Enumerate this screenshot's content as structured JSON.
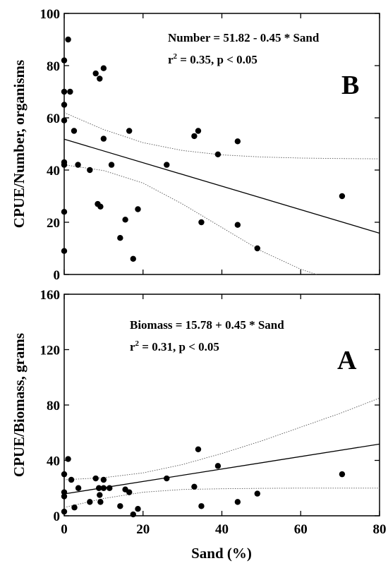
{
  "chart_data": [
    {
      "type": "scatter",
      "panel_label": "B",
      "ylabel": "CPUE/Number, organisms",
      "xlabel": "",
      "xlim": [
        0,
        80
      ],
      "ylim": [
        0,
        100
      ],
      "x_ticks": [
        0,
        20,
        40,
        60,
        80
      ],
      "y_ticks": [
        0,
        20,
        40,
        60,
        80,
        100
      ],
      "x_tick_labels": [
        "",
        "",
        "",
        "",
        ""
      ],
      "y_tick_labels": [
        "0",
        "20",
        "40",
        "60",
        "80",
        "100"
      ],
      "equation": "Number = 51.82 - 0.45  * Sand",
      "stats_prefix": "r",
      "stats_sup": "2",
      "stats_rest": " = 0.35, p < 0.05",
      "regression": {
        "intercept": 51.82,
        "slope": -0.45
      },
      "upper_band": [
        [
          0,
          62
        ],
        [
          10,
          55.5
        ],
        [
          20,
          50.5
        ],
        [
          30,
          47.5
        ],
        [
          40,
          45.8
        ],
        [
          50,
          45
        ],
        [
          60,
          44.6
        ],
        [
          70,
          44.4
        ],
        [
          80,
          44.3
        ]
      ],
      "lower_band": [
        [
          0,
          42
        ],
        [
          10,
          39.8
        ],
        [
          20,
          35
        ],
        [
          30,
          27
        ],
        [
          40,
          18
        ],
        [
          50,
          9
        ],
        [
          60,
          2
        ],
        [
          64,
          0
        ]
      ],
      "points": [
        [
          0,
          82
        ],
        [
          0,
          70
        ],
        [
          0,
          65
        ],
        [
          0,
          59
        ],
        [
          0,
          43
        ],
        [
          0,
          42
        ],
        [
          0,
          24
        ],
        [
          0,
          9
        ],
        [
          1,
          90
        ],
        [
          1.5,
          70
        ],
        [
          2.5,
          55
        ],
        [
          3.5,
          42
        ],
        [
          6.5,
          40
        ],
        [
          8,
          77
        ],
        [
          8.5,
          27
        ],
        [
          9,
          75
        ],
        [
          9.2,
          26
        ],
        [
          10,
          79
        ],
        [
          10,
          52
        ],
        [
          12,
          42
        ],
        [
          14.2,
          14
        ],
        [
          15.5,
          21
        ],
        [
          16.5,
          55
        ],
        [
          17.5,
          6
        ],
        [
          18.7,
          25
        ],
        [
          26,
          42
        ],
        [
          33,
          53
        ],
        [
          34,
          55
        ],
        [
          34.8,
          20
        ],
        [
          39,
          46
        ],
        [
          44,
          51
        ],
        [
          44,
          19
        ],
        [
          49,
          10
        ],
        [
          70.5,
          30
        ]
      ]
    },
    {
      "type": "scatter",
      "panel_label": "A",
      "ylabel": "CPUE/Biomass, grams",
      "xlabel": "Sand (%)",
      "xlim": [
        0,
        80
      ],
      "ylim": [
        0,
        160
      ],
      "x_ticks": [
        0,
        20,
        40,
        60,
        80
      ],
      "y_ticks": [
        0,
        40,
        80,
        120,
        160
      ],
      "x_tick_labels": [
        "0",
        "20",
        "40",
        "60",
        "80"
      ],
      "y_tick_labels": [
        "0",
        "40",
        "80",
        "120",
        "160"
      ],
      "equation": "Biomass  = 15.78 + 0.45 * Sand",
      "stats_prefix": "r",
      "stats_sup": "2",
      "stats_rest": " = 0.31, p < 0.05",
      "regression": {
        "intercept": 15.78,
        "slope": 0.45
      },
      "upper_band": [
        [
          0,
          26
        ],
        [
          10,
          27.5
        ],
        [
          20,
          31
        ],
        [
          30,
          37
        ],
        [
          40,
          45
        ],
        [
          50,
          54
        ],
        [
          60,
          64
        ],
        [
          70,
          74
        ],
        [
          80,
          85
        ]
      ],
      "lower_band": [
        [
          0,
          6
        ],
        [
          10,
          12.5
        ],
        [
          20,
          17
        ],
        [
          30,
          19
        ],
        [
          40,
          19.5
        ],
        [
          50,
          19.8
        ],
        [
          60,
          20
        ],
        [
          70,
          20
        ],
        [
          80,
          20
        ]
      ],
      "points": [
        [
          0,
          30
        ],
        [
          0,
          17
        ],
        [
          0,
          14
        ],
        [
          0,
          3
        ],
        [
          1,
          41
        ],
        [
          1.8,
          26
        ],
        [
          2.6,
          6
        ],
        [
          3.6,
          20
        ],
        [
          6.5,
          10
        ],
        [
          8,
          27
        ],
        [
          8.8,
          20
        ],
        [
          9,
          15
        ],
        [
          9.2,
          10
        ],
        [
          10,
          26
        ],
        [
          10,
          20
        ],
        [
          11.5,
          20
        ],
        [
          14.2,
          7
        ],
        [
          15.5,
          19
        ],
        [
          16.5,
          17
        ],
        [
          17.5,
          1
        ],
        [
          18.7,
          5
        ],
        [
          26,
          27
        ],
        [
          33,
          21
        ],
        [
          34,
          48
        ],
        [
          34.8,
          7
        ],
        [
          39,
          36
        ],
        [
          44,
          10
        ],
        [
          49,
          16
        ],
        [
          70.5,
          30
        ]
      ]
    }
  ]
}
